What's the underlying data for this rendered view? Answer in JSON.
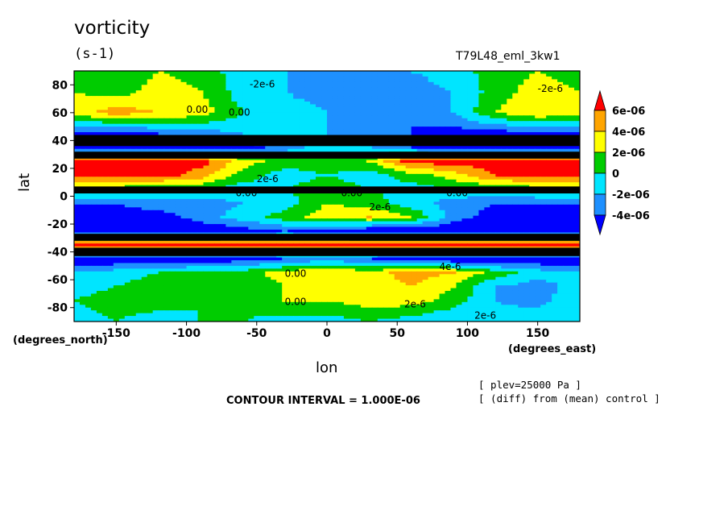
{
  "figure": {
    "title": "vorticity",
    "units": "(s-1)",
    "run_label": "T79L48_eml_3kw1",
    "xlabel": "lon",
    "ylabel": "lat",
    "xunits": "(degrees_east)",
    "yunits": "(degrees_north)",
    "info_lines": [
      "[ plev=25000 Pa ]",
      "[ (diff) from (mean) control ]"
    ],
    "contour_interval": "CONTOUR INTERVAL = 1.000E-06"
  },
  "chart_data": {
    "type": "heatmap",
    "title": "vorticity",
    "xlabel": "lon",
    "ylabel": "lat",
    "xlim": [
      -180,
      180
    ],
    "ylim": [
      -90,
      90
    ],
    "xticks": [
      -150,
      -100,
      -50,
      0,
      50,
      100,
      150
    ],
    "xtick_labels": [
      "-150",
      "-100",
      "-50",
      "0",
      "50",
      "100",
      "150"
    ],
    "yticks": [
      80,
      60,
      40,
      20,
      0,
      -20,
      -40,
      -60,
      -80
    ],
    "ytick_labels": [
      "80",
      "60",
      "40",
      "20",
      "0",
      "-20",
      "-40",
      "-60",
      "-80"
    ],
    "lon": [
      -180,
      -150,
      -120,
      -90,
      -60,
      -30,
      0,
      30,
      60,
      90,
      120,
      150,
      180
    ],
    "lat": [
      90,
      75,
      60,
      45,
      35,
      25,
      15,
      5,
      -5,
      -15,
      -25,
      -35,
      -45,
      -55,
      -65,
      -75,
      -90
    ],
    "values_1e6": [
      [
        1,
        0,
        2,
        1,
        -1,
        -2,
        -3,
        -3,
        -2,
        -1,
        1,
        2,
        1
      ],
      [
        2,
        1,
        3,
        2,
        -1,
        -2,
        -3,
        -4,
        -3,
        -2,
        1,
        3,
        2
      ],
      [
        3,
        5,
        4,
        3,
        0,
        -1,
        -2,
        -3,
        -4,
        -2,
        2,
        4,
        3
      ],
      [
        -5,
        -5,
        -4,
        -3,
        -2,
        -1,
        -2,
        -3,
        -4,
        -5,
        -5,
        -5,
        -5
      ],
      [
        -6,
        -6,
        -6,
        -6,
        -5,
        -3,
        -1,
        -2,
        -4,
        -6,
        -6,
        -6,
        -6
      ],
      [
        7,
        7,
        7,
        7,
        3,
        1,
        1,
        2,
        7,
        7,
        7,
        7,
        7
      ],
      [
        7,
        7,
        7,
        5,
        1,
        -1,
        0,
        -1,
        1,
        3,
        6,
        7,
        7
      ],
      [
        1,
        1,
        0,
        0,
        -1,
        0,
        1,
        0,
        -1,
        0,
        0,
        1,
        1
      ],
      [
        -4,
        -4,
        -3,
        -3,
        -2,
        -1,
        2,
        1,
        -1,
        -3,
        -4,
        -4,
        -4
      ],
      [
        -5,
        -5,
        -5,
        -3,
        -1,
        1,
        3,
        4,
        2,
        -3,
        -5,
        -5,
        -5
      ],
      [
        -6,
        -6,
        -6,
        -6,
        -5,
        -4,
        -5,
        -6,
        -6,
        -6,
        -6,
        -6,
        -6
      ],
      [
        7,
        7,
        7,
        7,
        7,
        7,
        7,
        7,
        7,
        7,
        7,
        7,
        7
      ],
      [
        -6,
        -6,
        -6,
        -6,
        -5,
        -4,
        -3,
        -4,
        -5,
        -6,
        -6,
        -6,
        -6
      ],
      [
        -2,
        -1,
        0,
        1,
        1,
        3,
        4,
        3,
        5,
        4,
        1,
        -1,
        -2
      ],
      [
        -1,
        0,
        1,
        1,
        0,
        2,
        3,
        3,
        4,
        2,
        -2,
        -3,
        -1
      ],
      [
        0,
        1,
        1,
        0,
        1,
        2,
        2,
        3,
        3,
        1,
        -2,
        -3,
        0
      ],
      [
        -1,
        0,
        -1,
        0,
        0,
        -1,
        -1,
        0,
        -1,
        -2,
        -1,
        0,
        -1
      ]
    ],
    "colorbar": {
      "levels": [
        "6e-06",
        "4e-06",
        "2e-06",
        "0",
        "-2e-06",
        "-4e-06"
      ],
      "colors": [
        "#ff0000",
        "#ffa500",
        "#ffff00",
        "#00cc00",
        "#00e5ff",
        "#1e90ff",
        "#0000ff"
      ]
    },
    "contour_labels": [
      "-2e-6",
      "0.00",
      "0.00",
      "2e-6",
      "0.00",
      "2e-6",
      "0.00",
      "0.00",
      "0.00",
      "0.00",
      "2e-6",
      "4e-6",
      "2e-6",
      "-2e-6"
    ],
    "grid": false
  }
}
